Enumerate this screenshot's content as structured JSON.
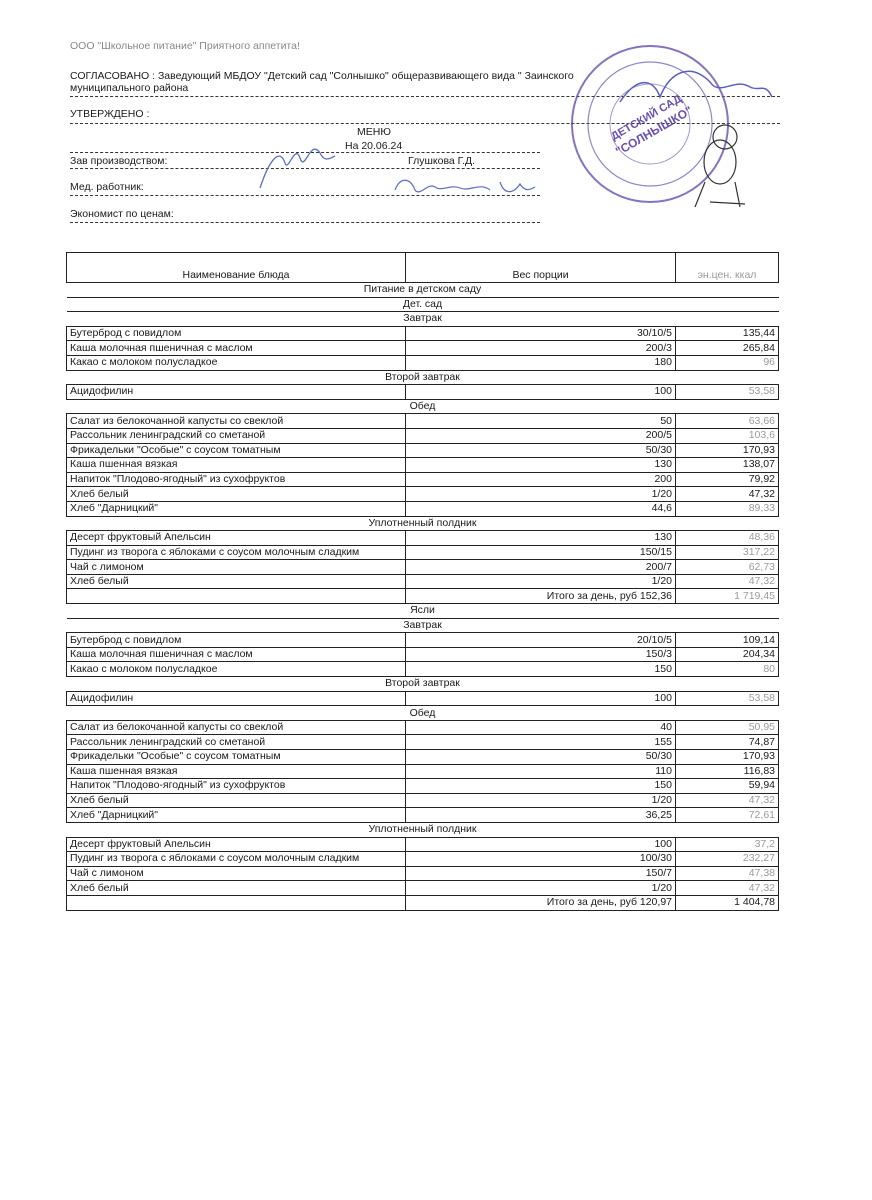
{
  "header": {
    "company_line": "ООО \"Школьное питание\" Приятного аппетита!",
    "agreed_line1": "СОГЛАСОВАНО : Заведующий МБДОУ \"Детский сад \"Солнышко\" общеразвивающего вида \" Заинского",
    "agreed_line2": "муниципального района",
    "approved": "УТВЕРЖДЕНО :",
    "title": "МЕНЮ",
    "date": "На 20.06.24",
    "production_label": "Зав производством:",
    "production_name": "Глушкова Г.Д.",
    "medic_label": "Мед. работник:",
    "economist_label": "Экономист по ценам:"
  },
  "stamp": {
    "text_center1": "ДЕТСКИЙ САД",
    "text_center2": "\"СОЛНЫШКО\"",
    "color": "#6a4fb0"
  },
  "table": {
    "columns": [
      "Наименование блюда",
      "Вес порции",
      "эн.цен. ккал"
    ],
    "rows": [
      {
        "section": "Питание в детском саду"
      },
      {
        "section": "Дет. сад"
      },
      {
        "section": "Завтрак"
      },
      {
        "name": "Бутерброд с повидлом",
        "weight": "30/10/5",
        "kcal": "135,44"
      },
      {
        "name": "Каша молочная пшеничная с маслом",
        "weight": "200/3",
        "kcal": "265,84"
      },
      {
        "name": "Какао с молоком полусладкое",
        "weight": "180",
        "kcal": "96",
        "faint": true
      },
      {
        "section": "Второй завтрак"
      },
      {
        "name": "Ацидофилин",
        "weight": "100",
        "kcal": "53,58",
        "faint": true
      },
      {
        "section": "Обед"
      },
      {
        "name": "Салат из белокочанной капусты со свеклой",
        "weight": "50",
        "kcal": "63,66",
        "faint": true
      },
      {
        "name": "Рассольник ленинградский со сметаной",
        "weight": "200/5",
        "kcal": "103,6",
        "faint": true
      },
      {
        "name": "Фрикадельки \"Особые\" с соусом томатным",
        "weight": "50/30",
        "kcal": "170,93"
      },
      {
        "name": "Каша пшенная вязкая",
        "weight": "130",
        "kcal": "138,07"
      },
      {
        "name": "Напиток \"Плодово-ягодный\" из сухофруктов",
        "weight": "200",
        "kcal": "79,92"
      },
      {
        "name": "Хлеб белый",
        "weight": "1/20",
        "kcal": "47,32"
      },
      {
        "name": "Хлеб \"Дарницкий\"",
        "weight": "44,6",
        "kcal": "89,33",
        "faint": true
      },
      {
        "section": "Уплотненный полдник"
      },
      {
        "name": "Десерт фруктовый Апельсин",
        "weight": "130",
        "kcal": "48,36",
        "faint": true
      },
      {
        "name": "Пудинг из творога с яблоками с соусом молочным сладким",
        "weight": "150/15",
        "kcal": "317,22",
        "faint": true
      },
      {
        "name": "Чай с лимоном",
        "weight": "200/7",
        "kcal": "62,73",
        "faint": true
      },
      {
        "name": "Хлеб белый",
        "weight": "1/20",
        "kcal": "47,32",
        "faint": true
      },
      {
        "name": "",
        "weight": "Итого за день, руб 152,36",
        "kcal": "1 719,45",
        "faint": true
      },
      {
        "section": "Ясли"
      },
      {
        "section": "Завтрак"
      },
      {
        "name": "Бутерброд с повидлом",
        "weight": "20/10/5",
        "kcal": "109,14"
      },
      {
        "name": "Каша молочная пшеничная с маслом",
        "weight": "150/3",
        "kcal": "204,34"
      },
      {
        "name": "Какао с молоком полусладкое",
        "weight": "150",
        "kcal": "80",
        "faint": true
      },
      {
        "section": "Второй завтрак"
      },
      {
        "name": "Ацидофилин",
        "weight": "100",
        "kcal": "53,58",
        "faint": true
      },
      {
        "section": "Обед"
      },
      {
        "name": "Салат из белокочанной капусты со свеклой",
        "weight": "40",
        "kcal": "50,95",
        "faint": true
      },
      {
        "name": "Рассольник ленинградский со сметаной",
        "weight": "155",
        "kcal": "74,87"
      },
      {
        "name": "Фрикадельки \"Особые\" с соусом томатным",
        "weight": "50/30",
        "kcal": "170,93"
      },
      {
        "name": "Каша пшенная вязкая",
        "weight": "110",
        "kcal": "116,83"
      },
      {
        "name": "Напиток \"Плодово-ягодный\" из сухофруктов",
        "weight": "150",
        "kcal": "59,94"
      },
      {
        "name": "Хлеб белый",
        "weight": "1/20",
        "kcal": "47,32",
        "faint": true
      },
      {
        "name": "Хлеб \"Дарницкий\"",
        "weight": "36,25",
        "kcal": "72,61",
        "faint": true
      },
      {
        "section": "Уплотненный полдник"
      },
      {
        "name": "Десерт фруктовый Апельсин",
        "weight": "100",
        "kcal": "37,2",
        "faint": true
      },
      {
        "name": "Пудинг из творога с яблоками с соусом молочным сладким",
        "weight": "100/30",
        "kcal": "232,27",
        "faint": true
      },
      {
        "name": "Чай с лимоном",
        "weight": "150/7",
        "kcal": "47,38",
        "faint": true
      },
      {
        "name": "Хлеб белый",
        "weight": "1/20",
        "kcal": "47,32",
        "faint": true
      },
      {
        "name": "",
        "weight": "Итого за день, руб 120,97",
        "kcal": "1 404,78"
      }
    ]
  }
}
